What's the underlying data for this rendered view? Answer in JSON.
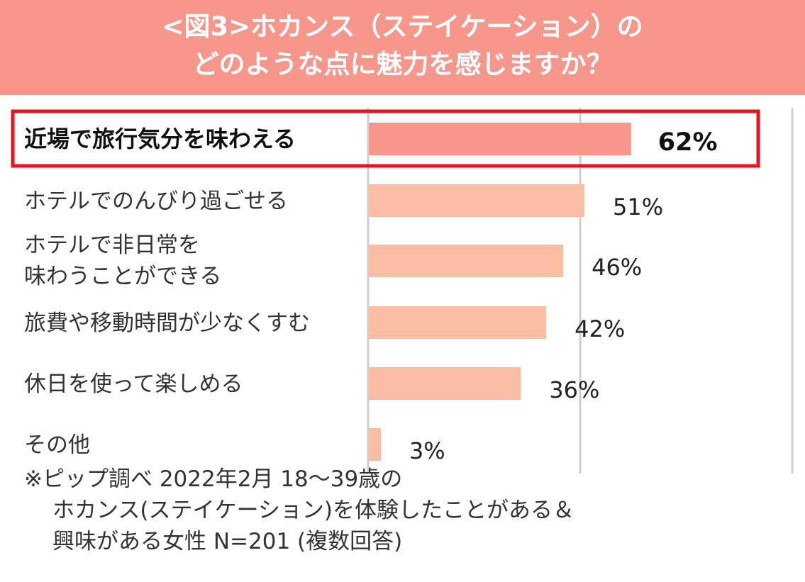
{
  "title": {
    "line1": "<図3>ホカンス（ステイケーション）の",
    "line2": "どのような点に魅力を感じますか？"
  },
  "colors": {
    "title_band": "#f7968a",
    "bar_highlight": "#f7968a",
    "bar_normal": "#f8bda3",
    "highlight_border": "#e8141c",
    "gridline": "#cfcfcf"
  },
  "chart_data": {
    "type": "bar",
    "orientation": "horizontal",
    "title": "<図3>ホカンス（ステイケーション）の どのような点に魅力を感じますか？",
    "categories": [
      [
        "近場で旅行気分を味わえる"
      ],
      [
        "ホテルでのんびり過ごせる"
      ],
      [
        "ホテルで非日常を",
        "味わうことができる"
      ],
      [
        "旅費や移動時間が少なくすむ"
      ],
      [
        "休日を使って楽しめる"
      ],
      [
        "その他"
      ]
    ],
    "values": [
      62,
      51,
      46,
      42,
      36,
      3
    ],
    "value_labels": [
      "62%",
      "51%",
      "46%",
      "42%",
      "36%",
      "3%"
    ],
    "highlighted_index": 0,
    "unit": "%",
    "xlim": [
      0,
      100
    ],
    "gridlines": [
      0,
      50,
      100
    ]
  },
  "note": {
    "line1": "※ピップ調べ 2022年2月 18〜39歳の",
    "line2": "ホカンス(ステイケーション)を体験したことがある＆",
    "line3": "興味がある女性 N=201 (複数回答)"
  }
}
